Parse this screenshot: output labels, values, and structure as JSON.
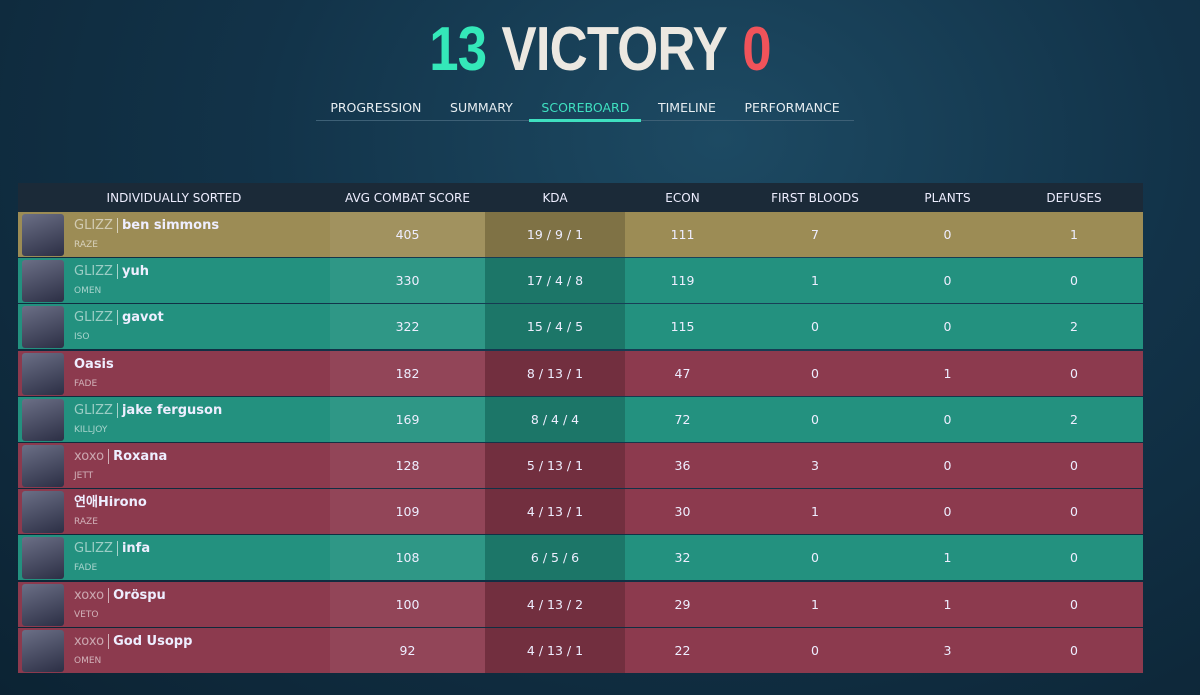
{
  "header": {
    "score_left": "13",
    "result": "VICTORY",
    "score_right": "0"
  },
  "tabs": [
    "PROGRESSION",
    "SUMMARY",
    "SCOREBOARD",
    "TIMELINE",
    "PERFORMANCE"
  ],
  "active_tab": 2,
  "table": {
    "columns": [
      "INDIVIDUALLY SORTED",
      "AVG COMBAT SCORE",
      "KDA",
      "ECON",
      "FIRST BLOODS",
      "PLANTS",
      "DEFUSES"
    ],
    "rows": [
      {
        "tag": "GLIZZ",
        "name": "ben simmons",
        "agent": "RAZE",
        "acs": 405,
        "kda": "19 / 9 / 1",
        "econ": 111,
        "first_bloods": 7,
        "plants": 0,
        "defuses": 1,
        "color": "#9c8c55"
      },
      {
        "tag": "GLIZZ",
        "name": "yuh",
        "agent": "OMEN",
        "acs": 330,
        "kda": "17 / 4 / 8",
        "econ": 119,
        "first_bloods": 1,
        "plants": 0,
        "defuses": 0,
        "color": "#23917f"
      },
      {
        "tag": "GLIZZ",
        "name": "gavot",
        "agent": "ISO",
        "acs": 322,
        "kda": "15 / 4 / 5",
        "econ": 115,
        "first_bloods": 0,
        "plants": 0,
        "defuses": 2,
        "color": "#23917f"
      },
      {
        "tag": null,
        "name": "Oasis",
        "agent": "FADE",
        "acs": 182,
        "kda": "8 / 13 / 1",
        "econ": 47,
        "first_bloods": 0,
        "plants": 1,
        "defuses": 0,
        "color": "#8c3a4e"
      },
      {
        "tag": "GLIZZ",
        "name": "jake ferguson",
        "agent": "KILLJOY",
        "acs": 169,
        "kda": "8 / 4 / 4",
        "econ": 72,
        "first_bloods": 0,
        "plants": 0,
        "defuses": 2,
        "color": "#23917f"
      },
      {
        "tag": "xoxo",
        "name": "Roxana",
        "agent": "JETT",
        "acs": 128,
        "kda": "5 / 13 / 1",
        "econ": 36,
        "first_bloods": 3,
        "plants": 0,
        "defuses": 0,
        "color": "#8c3a4e"
      },
      {
        "tag": null,
        "name": "연애Hirono",
        "agent": "RAZE",
        "acs": 109,
        "kda": "4 / 13 / 1",
        "econ": 30,
        "first_bloods": 1,
        "plants": 0,
        "defuses": 0,
        "color": "#8c3a4e"
      },
      {
        "tag": "GLIZZ",
        "name": "infa",
        "agent": "FADE",
        "acs": 108,
        "kda": "6 / 5 / 6",
        "econ": 32,
        "first_bloods": 0,
        "plants": 1,
        "defuses": 0,
        "color": "#23917f"
      },
      {
        "tag": "xoxo",
        "name": "Oröspu",
        "agent": "VETO",
        "acs": 100,
        "kda": "4 / 13 / 2",
        "econ": 29,
        "first_bloods": 1,
        "plants": 1,
        "defuses": 0,
        "color": "#8c3a4e"
      },
      {
        "tag": "xoxo",
        "name": "God Usopp",
        "agent": "OMEN",
        "acs": 92,
        "kda": "4 / 13 / 1",
        "econ": 22,
        "first_bloods": 0,
        "plants": 3,
        "defuses": 0,
        "color": "#8c3a4e"
      }
    ]
  }
}
